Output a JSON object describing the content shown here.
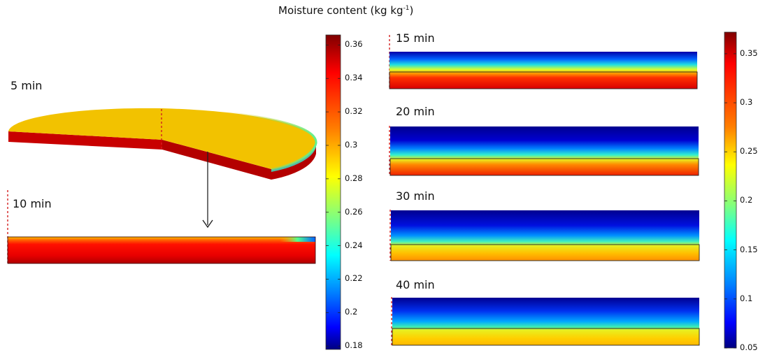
{
  "title": {
    "prefix": "Moisture content (kg kg",
    "superscript": "-1",
    "suffix": ")"
  },
  "time_labels": {
    "t5": "5 min",
    "t10": "10  min",
    "t15": "15 min",
    "t20": "20 min",
    "t30": "30 min",
    "t40": "40 min"
  },
  "colorbar_left": {
    "ticks": [
      "0.36",
      "0.34",
      "0.32",
      "0.3",
      "0.28",
      "0.26",
      "0.24",
      "0.22",
      "0.2",
      "0.18"
    ],
    "range": [
      0.178,
      0.366
    ]
  },
  "colorbar_right": {
    "ticks": [
      "0.35",
      "0.3",
      "0.25",
      "0.2",
      "0.15",
      "0.1",
      "0.05"
    ],
    "range": [
      0.05,
      0.372
    ]
  },
  "colors": {
    "jet": [
      "#00007f",
      "#0000ff",
      "#007fff",
      "#00ffff",
      "#7fff7f",
      "#ffff00",
      "#ff7f00",
      "#ff0000",
      "#7f0000"
    ],
    "dashed_marker": "#d22020",
    "arrow": "#222222"
  }
}
